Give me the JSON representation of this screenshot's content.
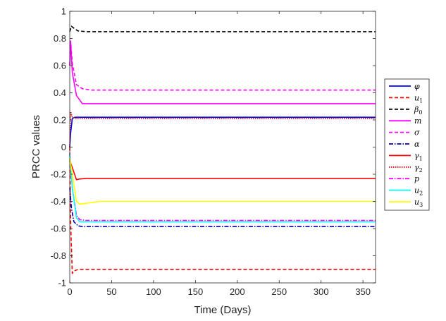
{
  "chart_data": {
    "type": "line",
    "title": "",
    "xlabel": "Time (Days)",
    "ylabel": "PRCC values",
    "xlim": [
      0,
      365
    ],
    "ylim": [
      -1,
      1
    ],
    "xticks": [
      0,
      50,
      100,
      150,
      200,
      250,
      300,
      350
    ],
    "yticks": [
      -1,
      -0.8,
      -0.6,
      -0.4,
      -0.2,
      0,
      0.2,
      0.4,
      0.6,
      0.8,
      1
    ],
    "xtick_labels": [
      "0",
      "50",
      "100",
      "150",
      "200",
      "250",
      "300",
      "350"
    ],
    "ytick_labels": [
      "-1",
      "-0.8",
      "-0.6",
      "-0.4",
      "-0.2",
      "0",
      "0.2",
      "0.4",
      "0.6",
      "0.8",
      "1"
    ],
    "grid": false,
    "legend_position": "outside-right",
    "series": [
      {
        "name": "φ",
        "color": "#0000ff",
        "style": "solid",
        "x": [
          0,
          1,
          3,
          6,
          365
        ],
        "y": [
          0.0,
          0.1,
          0.21,
          0.22,
          0.22
        ]
      },
      {
        "name": "u1",
        "color": "#ff0000",
        "style": "dashed",
        "x": [
          0,
          1,
          3,
          6,
          10,
          365
        ],
        "y": [
          0.0,
          -0.55,
          -0.93,
          -0.91,
          -0.9,
          -0.9
        ]
      },
      {
        "name": "β0",
        "color": "#000000",
        "style": "dashed",
        "x": [
          0,
          2,
          6,
          10,
          20,
          365
        ],
        "y": [
          0.85,
          0.89,
          0.87,
          0.855,
          0.85,
          0.85
        ]
      },
      {
        "name": "m",
        "color": "#ff00ff",
        "style": "solid",
        "x": [
          0,
          1,
          3,
          8,
          15,
          365
        ],
        "y": [
          0.6,
          0.78,
          0.55,
          0.38,
          0.32,
          0.32
        ]
      },
      {
        "name": "σ",
        "color": "#ff00ff",
        "style": "dashed",
        "x": [
          0,
          1,
          3,
          8,
          15,
          25,
          365
        ],
        "y": [
          0.6,
          0.78,
          0.62,
          0.46,
          0.43,
          0.42,
          0.42
        ]
      },
      {
        "name": "α",
        "color": "#0000aa",
        "style": "dashdot",
        "x": [
          0,
          2,
          5,
          10,
          15,
          365
        ],
        "y": [
          -0.3,
          -0.45,
          -0.55,
          -0.58,
          -0.585,
          -0.585
        ]
      },
      {
        "name": "γ1",
        "color": "#ff0000",
        "style": "solid",
        "x": [
          0,
          3,
          8,
          12,
          20,
          365
        ],
        "y": [
          -0.1,
          -0.15,
          -0.24,
          -0.235,
          -0.23,
          -0.23
        ]
      },
      {
        "name": "γ2",
        "color": "#cc0000",
        "style": "dotted",
        "x": [
          0,
          1,
          3,
          8,
          365
        ],
        "y": [
          0.0,
          0.26,
          0.22,
          0.21,
          0.21
        ]
      },
      {
        "name": "p",
        "color": "#ff00ff",
        "style": "dashdot",
        "x": [
          0,
          3,
          8,
          12,
          20,
          365
        ],
        "y": [
          -0.05,
          -0.3,
          -0.5,
          -0.535,
          -0.54,
          -0.54
        ]
      },
      {
        "name": "u2",
        "color": "#00ffff",
        "style": "solid",
        "x": [
          0,
          3,
          8,
          12,
          20,
          365
        ],
        "y": [
          -0.05,
          -0.3,
          -0.52,
          -0.55,
          -0.55,
          -0.55
        ]
      },
      {
        "name": "u3",
        "color": "#ffff00",
        "style": "solid",
        "x": [
          0,
          3,
          8,
          12,
          25,
          35,
          365
        ],
        "y": [
          -0.08,
          -0.2,
          -0.4,
          -0.42,
          -0.41,
          -0.4,
          -0.4
        ]
      }
    ]
  },
  "legend": {
    "items": [
      {
        "label": "φ",
        "sub": ""
      },
      {
        "label": "u",
        "sub": "1"
      },
      {
        "label": "β",
        "sub": "0"
      },
      {
        "label": "m",
        "sub": ""
      },
      {
        "label": "σ",
        "sub": ""
      },
      {
        "label": "α",
        "sub": ""
      },
      {
        "label": "γ",
        "sub": "1"
      },
      {
        "label": "γ",
        "sub": "2"
      },
      {
        "label": "p",
        "sub": ""
      },
      {
        "label": "u",
        "sub": "2"
      },
      {
        "label": "u",
        "sub": "3"
      }
    ]
  }
}
